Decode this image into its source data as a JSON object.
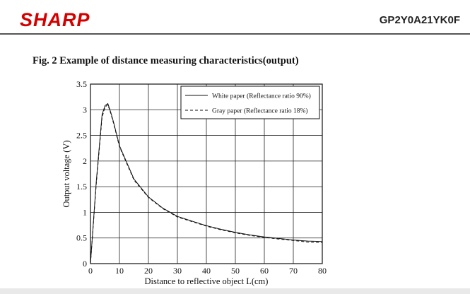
{
  "header": {
    "logo_text": "SHARP",
    "logo_color": "#d40000",
    "part_number": "GP2Y0A21YK0F"
  },
  "figure": {
    "title": "Fig. 2 Example of distance measuring characteristics(output)"
  },
  "chart_data": {
    "type": "line",
    "xlabel": "Distance to reflective object L(cm)",
    "ylabel": "Output voltage (V)",
    "xlim": [
      0,
      80
    ],
    "ylim": [
      0,
      3.5
    ],
    "xticks": [
      0,
      10,
      20,
      30,
      40,
      50,
      60,
      70,
      80
    ],
    "yticks": [
      0,
      0.5,
      1,
      1.5,
      2,
      2.5,
      3,
      3.5
    ],
    "grid": true,
    "legend_position": "top-right",
    "series": [
      {
        "name": "White paper (Reflectance ratio 90%)",
        "style": "solid",
        "x": [
          0,
          2,
          4,
          5,
          6,
          7,
          8,
          10,
          15,
          20,
          25,
          30,
          35,
          40,
          45,
          50,
          55,
          60,
          65,
          70,
          75,
          80
        ],
        "y": [
          0.0,
          1.6,
          2.9,
          3.08,
          3.12,
          2.95,
          2.75,
          2.3,
          1.65,
          1.3,
          1.08,
          0.92,
          0.83,
          0.74,
          0.67,
          0.61,
          0.56,
          0.52,
          0.49,
          0.46,
          0.44,
          0.43
        ]
      },
      {
        "name": "Gray paper (Reflectance ratio 18%)",
        "style": "dashed",
        "x": [
          0,
          2,
          4,
          5,
          6,
          7,
          8,
          10,
          15,
          20,
          25,
          30,
          35,
          40,
          45,
          50,
          55,
          60,
          65,
          70,
          75,
          80
        ],
        "y": [
          0.0,
          1.55,
          2.85,
          3.05,
          3.1,
          2.93,
          2.73,
          2.28,
          1.63,
          1.29,
          1.07,
          0.91,
          0.82,
          0.73,
          0.66,
          0.6,
          0.55,
          0.51,
          0.48,
          0.45,
          0.42,
          0.41
        ]
      }
    ]
  }
}
